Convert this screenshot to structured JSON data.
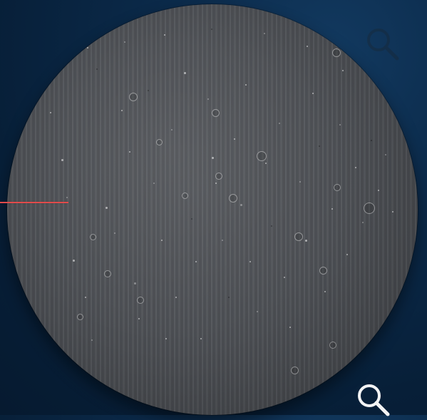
{
  "scene": {
    "type": "microscope-image",
    "image_shape": "circular",
    "background_color": "#0b2a4a",
    "sample_tint": "#4a4d52",
    "marker_color": "#e14b4b"
  },
  "icons": {
    "top_magnifier": "search-icon",
    "bottom_magnifier": "search-icon"
  }
}
